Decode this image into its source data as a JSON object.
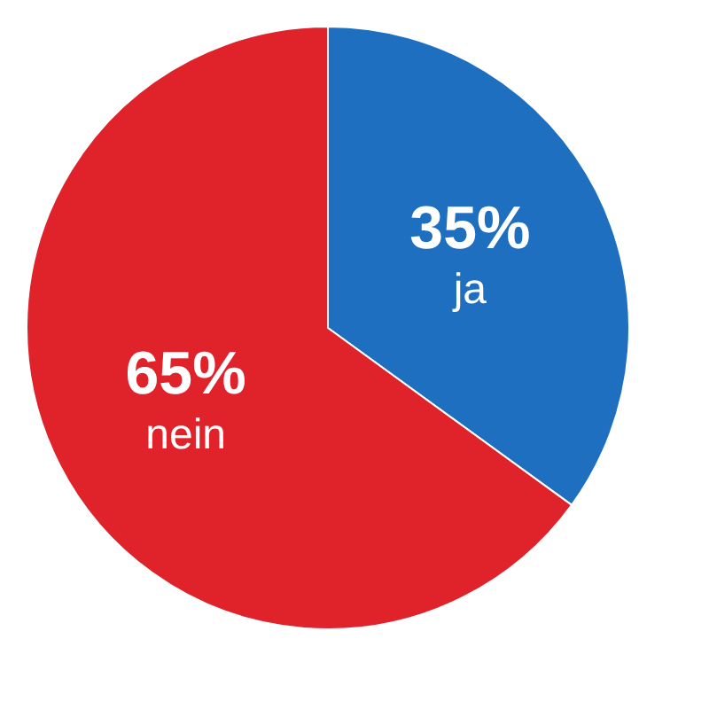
{
  "chart_data": {
    "type": "pie",
    "categories": [
      "ja",
      "nein"
    ],
    "values": [
      35,
      65
    ],
    "value_labels": [
      "35%",
      "65%"
    ],
    "colors": [
      "#1f6fc1",
      "#e0222b"
    ]
  }
}
